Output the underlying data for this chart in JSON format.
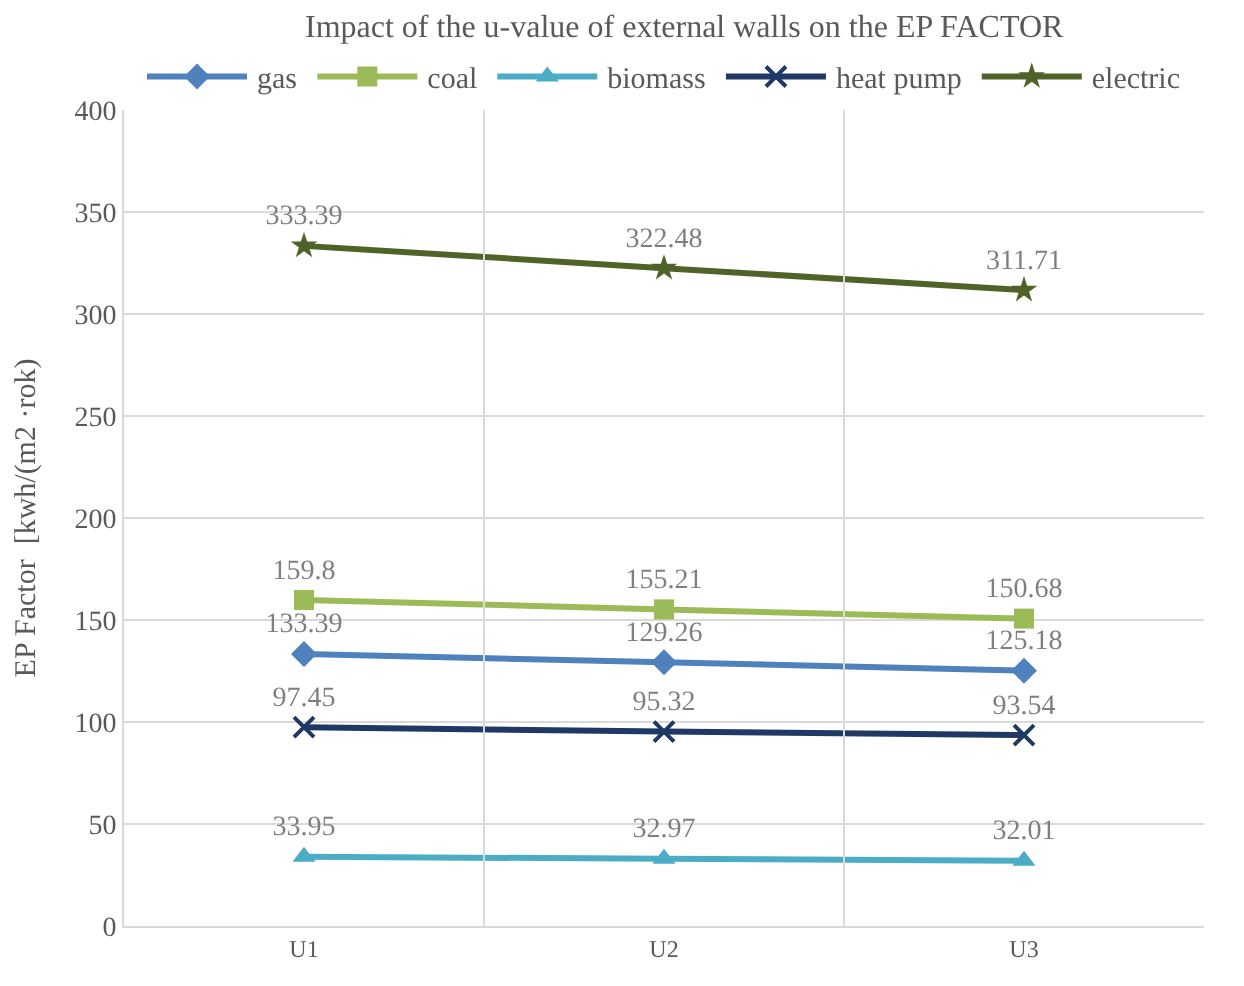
{
  "chart_data": {
    "type": "line",
    "title": "Impact of the u-value of external walls on the EP FACTOR",
    "ylabel": "EP Factor  [kwh/(m2 ·rok)",
    "categories": [
      "U1",
      "U2",
      "U3"
    ],
    "series": [
      {
        "name": "gas",
        "color": "#4f81bd",
        "marker": "diamond",
        "values": [
          133.39,
          129.26,
          125.18
        ]
      },
      {
        "name": "coal",
        "color": "#9bbb59",
        "marker": "square",
        "values": [
          159.8,
          155.21,
          150.68
        ]
      },
      {
        "name": "biomass",
        "color": "#4bacc6",
        "marker": "triangle",
        "values": [
          33.95,
          32.97,
          32.01
        ]
      },
      {
        "name": "heat pump",
        "color": "#1f3864",
        "marker": "cross",
        "values": [
          97.45,
          95.32,
          93.54
        ]
      },
      {
        "name": "electric",
        "color": "#4f6228",
        "marker": "star",
        "values": [
          333.39,
          322.48,
          311.71
        ]
      }
    ],
    "ylim": [
      0,
      400
    ],
    "yticks": [
      0,
      50,
      100,
      150,
      200,
      250,
      300,
      350,
      400
    ],
    "grid": true,
    "legend": "top",
    "data_labels": true
  }
}
